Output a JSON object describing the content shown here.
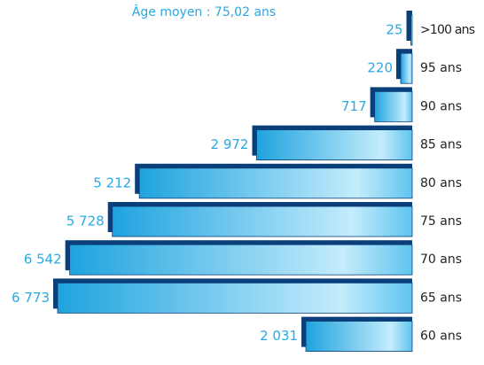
{
  "chart_data": {
    "type": "bar",
    "orientation": "horizontal",
    "title": "Âge moyen : 75,02 ans",
    "categories": [
      ">100 ans",
      "95 ans",
      "90 ans",
      "85 ans",
      "80 ans",
      "75 ans",
      "70 ans",
      "65 ans",
      "60 ans"
    ],
    "values": [
      25,
      220,
      717,
      2972,
      5212,
      5728,
      6542,
      6773,
      2031
    ],
    "value_labels": [
      "25",
      "220",
      "717",
      "2 972",
      "5 212",
      "5 728",
      "6 542",
      "6 773",
      "2 031"
    ],
    "color": "#29a9e1"
  }
}
